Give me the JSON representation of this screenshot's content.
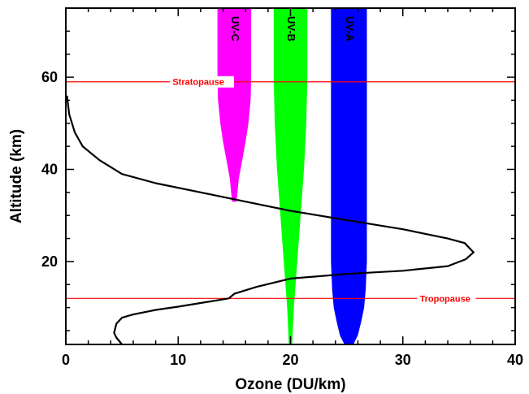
{
  "chart_data": {
    "type": "line",
    "title": "",
    "xlabel": "Ozone (DU/km)",
    "ylabel": "Altitude (km)",
    "xlim": [
      0,
      40
    ],
    "ylim": [
      2,
      75
    ],
    "x_ticks": [
      0,
      10,
      20,
      30,
      40
    ],
    "y_ticks": [
      20,
      40,
      60
    ],
    "grid": false,
    "series": [
      {
        "x": [
          0.1,
          0.3,
          0.8,
          1.5,
          3,
          5,
          8,
          12,
          16,
          20,
          25,
          30,
          34,
          35.5,
          36.3,
          35.6,
          34,
          30,
          25,
          20,
          17,
          15,
          14.5,
          12,
          10,
          8,
          6,
          5,
          4.5,
          4.3,
          4.5,
          5
        ],
        "y": [
          56,
          52,
          48,
          45,
          42,
          39,
          37,
          35,
          33,
          31,
          29,
          27,
          25,
          24,
          22,
          20.5,
          19,
          18,
          17.3,
          16.3,
          14.5,
          13,
          12,
          11,
          10.2,
          9.5,
          8.5,
          7.8,
          6.5,
          4.5,
          3.5,
          2
        ]
      }
    ],
    "bands": [
      {
        "label": "UV-C",
        "color": "#ff00ff",
        "center_x": 15,
        "y": [
          33,
          38,
          42,
          46,
          50,
          55,
          60,
          65,
          70,
          75
        ],
        "half_width": [
          0.2,
          0.4,
          0.7,
          1.0,
          1.25,
          1.45,
          1.5,
          1.5,
          1.5,
          1.5
        ]
      },
      {
        "label": "UV-B",
        "color": "#00ff00",
        "center_x": 20,
        "y": [
          2,
          5,
          10,
          15,
          20,
          25,
          30,
          35,
          40,
          50,
          60,
          75
        ],
        "half_width": [
          0.15,
          0.2,
          0.3,
          0.45,
          0.6,
          0.75,
          0.9,
          1.05,
          1.2,
          1.4,
          1.5,
          1.5
        ]
      },
      {
        "label": "UV-A",
        "color": "#0000ff",
        "center_x": 25.2,
        "y": [
          2,
          4,
          7,
          10,
          14,
          20,
          30,
          45,
          75
        ],
        "half_width": [
          0.4,
          0.8,
          1.1,
          1.35,
          1.5,
          1.6,
          1.6,
          1.6,
          1.6
        ]
      }
    ],
    "reference_lines": [
      {
        "label": "Stratopause",
        "y": 59,
        "color": "#ff0000",
        "label_x": 9.5
      },
      {
        "label": "Tropopause",
        "y": 12,
        "color": "#ff0000",
        "label_x": 31.5
      }
    ]
  }
}
